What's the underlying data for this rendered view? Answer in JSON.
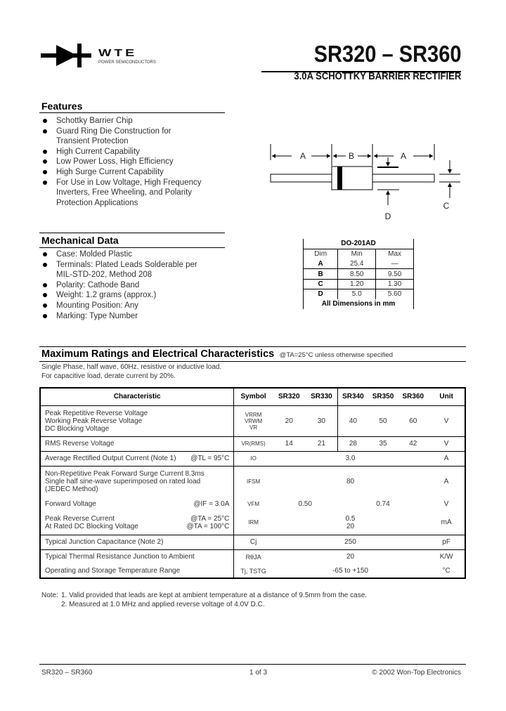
{
  "header": {
    "logo_text": "WTE",
    "logo_subtext": "POWER SEMICONDUCTORS",
    "title": "SR320 – SR360",
    "subtitle": "3.0A SCHOTTKY BARRIER RECTIFIER"
  },
  "features": {
    "heading": "Features",
    "items": [
      [
        "Schottky Barrier Chip"
      ],
      [
        "Guard Ring Die Construction for",
        "Transient Protection"
      ],
      [
        "High Current Capability"
      ],
      [
        "Low Power Loss, High Efficiency"
      ],
      [
        "High Surge Current Capability"
      ],
      [
        "For Use in Low Voltage, High Frequency",
        "Inverters, Free Wheeling, and Polarity",
        "Protection Applications"
      ]
    ]
  },
  "mechanical": {
    "heading": "Mechanical Data",
    "items": [
      [
        "Case: Molded Plastic"
      ],
      [
        "Terminals: Plated Leads Solderable per",
        "MIL-STD-202, Method 208"
      ],
      [
        "Polarity: Cathode Band"
      ],
      [
        "Weight: 1.2 grams (approx.)"
      ],
      [
        "Mounting Position: Any"
      ],
      [
        "Marking: Type Number"
      ]
    ]
  },
  "diagram": {
    "labels": {
      "a": "A",
      "b": "B",
      "c": "C",
      "d": "D"
    }
  },
  "dim_table": {
    "title": "DO-201AD",
    "headers": [
      "Dim",
      "Min",
      "Max"
    ],
    "rows": [
      [
        "A",
        "25.4",
        "—"
      ],
      [
        "B",
        "8.50",
        "9.50"
      ],
      [
        "C",
        "1.20",
        "1.30"
      ],
      [
        "D",
        "5.0",
        "5.60"
      ]
    ],
    "footer": "All Dimensions in mm"
  },
  "ratings": {
    "heading": "Maximum Ratings and Electrical Characteristics",
    "heading_note": "@TA=25°C unless otherwise specified",
    "notes_top": [
      "Single Phase, half wave, 60Hz, resistive or inductive load.",
      "For capacitive load, derate current by 20%."
    ],
    "headers": [
      "Characteristic",
      "Symbol",
      "SR320",
      "SR330",
      "SR340",
      "SR350",
      "SR360",
      "Unit"
    ],
    "rows": {
      "r1": {
        "char": [
          "Peak Repetitive Reverse Voltage",
          "Working Peak Reverse Voltage",
          "DC Blocking Voltage"
        ],
        "symbol": [
          "VRRM",
          "VRWM",
          "VR"
        ],
        "values": [
          "20",
          "30",
          "40",
          "50",
          "60"
        ],
        "unit": "V"
      },
      "r2": {
        "char": "RMS Reverse Voltage",
        "symbol": "VR(RMS)",
        "values": [
          "14",
          "21",
          "28",
          "35",
          "42"
        ],
        "unit": "V"
      },
      "r3": {
        "char": "Average Rectified Output Current   (Note 1)",
        "cond": "@TL = 95°C",
        "symbol": "IO",
        "value": "3.0",
        "unit": "A"
      },
      "r4": {
        "char": [
          "Non-Repetitive Peak Forward Surge Current 8.3ms",
          "Single half sine-wave superimposed on rated load",
          "(JEDEC Method)"
        ],
        "symbol": "IFSM",
        "value": "80",
        "unit": "A"
      },
      "r5": {
        "char": "Forward Voltage",
        "cond": "@IF = 3.0A",
        "symbol": "VFM",
        "values": [
          "0.50",
          "0.74"
        ],
        "unit": "V"
      },
      "r6": {
        "char": [
          "Peak Reverse Current",
          "At Rated DC Blocking Voltage"
        ],
        "cond": [
          "@TA = 25°C",
          "@TA = 100°C"
        ],
        "symbol": "IRM",
        "values": [
          "0.5",
          "20"
        ],
        "unit": "mA"
      },
      "r7": {
        "char": "Typical Junction Capacitance (Note 2)",
        "symbol": "Cj",
        "value": "250",
        "unit": "pF"
      },
      "r8": {
        "char": "Typical Thermal Resistance Junction to Ambient",
        "symbol": "RθJA",
        "value": "20",
        "unit": "K/W"
      },
      "r9": {
        "char": "Operating and Storage Temperature Range",
        "symbol": "Tj, TSTG",
        "value": "-65 to +150",
        "unit": "°C"
      }
    }
  },
  "notes": {
    "label": "Note:",
    "items": [
      "1. Valid provided that leads are kept at ambient temperature at a distance of 9.5mm from the case.",
      "2. Measured at 1.0 MHz and applied reverse voltage of 4.0V D.C."
    ]
  },
  "footer": {
    "left": "SR320 – SR360",
    "center": "1 of 3",
    "right": "© 2002 Won-Top Electronics"
  }
}
